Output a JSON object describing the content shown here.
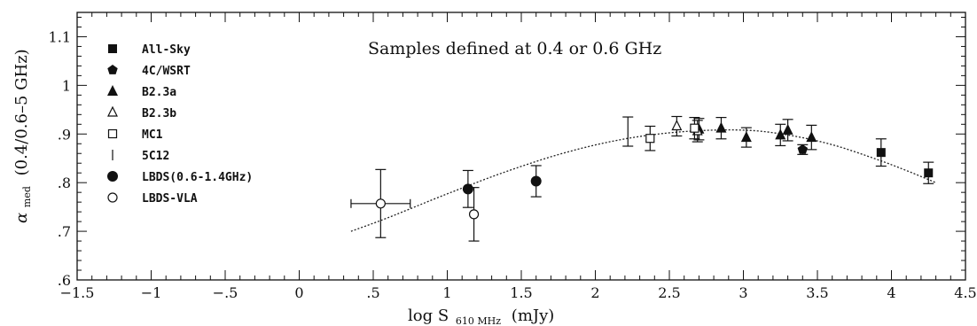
{
  "chart_data": {
    "type": "scatter",
    "title": "Samples defined at 0.4 or 0.6 GHz",
    "xlabel": "log S",
    "xlabel_sub": "610 MHz",
    "xlabel_unit": "(mJy)",
    "ylabel_greek": "α",
    "ylabel_sub": "med",
    "ylabel_rest": "(0.4/0.6–5 GHz)",
    "xlim": [
      -1.5,
      4.5
    ],
    "ylim": [
      0.6,
      1.15
    ],
    "xticks": [
      {
        "v": -1.5,
        "label": "−1.5"
      },
      {
        "v": -1,
        "label": "−1"
      },
      {
        "v": -0.5,
        "label": "−.5"
      },
      {
        "v": 0,
        "label": "0"
      },
      {
        "v": 0.5,
        "label": ".5"
      },
      {
        "v": 1,
        "label": "1"
      },
      {
        "v": 1.5,
        "label": "1.5"
      },
      {
        "v": 2,
        "label": "2"
      },
      {
        "v": 2.5,
        "label": "2.5"
      },
      {
        "v": 3,
        "label": "3"
      },
      {
        "v": 3.5,
        "label": "3.5"
      },
      {
        "v": 4,
        "label": "4"
      },
      {
        "v": 4.5,
        "label": "4.5"
      }
    ],
    "yticks": [
      {
        "v": 0.6,
        "label": ".6"
      },
      {
        "v": 0.7,
        "label": ".7"
      },
      {
        "v": 0.8,
        "label": ".8"
      },
      {
        "v": 0.9,
        "label": ".9"
      },
      {
        "v": 1.0,
        "label": "1"
      },
      {
        "v": 1.1,
        "label": "1.1"
      }
    ],
    "legend_position": "top-left",
    "series": [
      {
        "name": "All-Sky",
        "marker": "square-filled",
        "points": [
          {
            "x": 3.93,
            "y": 0.862,
            "err": 0.028
          },
          {
            "x": 4.25,
            "y": 0.82,
            "err": 0.022
          }
        ]
      },
      {
        "name": "4C/WSRT",
        "marker": "pentagon-filled",
        "points": [
          {
            "x": 3.4,
            "y": 0.868,
            "err": 0.01
          }
        ]
      },
      {
        "name": "B2.3a",
        "marker": "triangle-filled",
        "points": [
          {
            "x": 2.7,
            "y": 0.91,
            "err": 0.022
          },
          {
            "x": 2.85,
            "y": 0.912,
            "err": 0.022
          },
          {
            "x": 3.02,
            "y": 0.893,
            "err": 0.02
          },
          {
            "x": 3.25,
            "y": 0.898,
            "err": 0.022
          },
          {
            "x": 3.3,
            "y": 0.908,
            "err": 0.022
          },
          {
            "x": 3.46,
            "y": 0.893,
            "err": 0.025
          }
        ]
      },
      {
        "name": "B2.3b",
        "marker": "triangle-open",
        "points": [
          {
            "x": 2.55,
            "y": 0.916,
            "err": 0.02
          },
          {
            "x": 2.69,
            "y": 0.906,
            "err": 0.022
          }
        ]
      },
      {
        "name": "MC1",
        "marker": "square-open",
        "points": [
          {
            "x": 2.37,
            "y": 0.891,
            "err": 0.025
          },
          {
            "x": 2.67,
            "y": 0.912,
            "err": 0.022
          }
        ]
      },
      {
        "name": "5C12",
        "marker": "bar",
        "points": [
          {
            "x": 2.22,
            "y": 0.905,
            "err": 0.03
          }
        ]
      },
      {
        "name": "LBDS(0.6-1.4GHz)",
        "marker": "circle-filled",
        "points": [
          {
            "x": 1.14,
            "y": 0.787,
            "err": 0.038
          },
          {
            "x": 1.6,
            "y": 0.803,
            "err": 0.032
          }
        ]
      },
      {
        "name": "LBDS-VLA",
        "marker": "circle-open",
        "points": [
          {
            "x": 0.55,
            "y": 0.757,
            "err": 0.07,
            "xerr": 0.2
          },
          {
            "x": 1.18,
            "y": 0.735,
            "err": 0.055
          }
        ]
      }
    ],
    "fit_curve": {
      "style": "dotted",
      "x": [
        0.35,
        0.6,
        1.0,
        1.4,
        1.8,
        2.2,
        2.6,
        3.0,
        3.3,
        3.6,
        3.9,
        4.1,
        4.3
      ],
      "y": [
        0.7,
        0.728,
        0.777,
        0.823,
        0.862,
        0.89,
        0.905,
        0.908,
        0.898,
        0.878,
        0.848,
        0.825,
        0.8
      ]
    }
  }
}
